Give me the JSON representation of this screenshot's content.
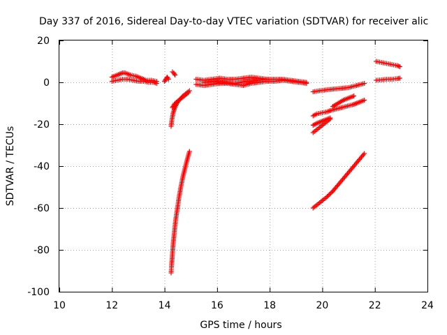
{
  "chart_data": {
    "type": "scatter",
    "title": "Day 337 of 2016, Sidereal Day-to-day VTEC variation (SDTVAR) for receiver alic",
    "xlabel": "GPS time / hours",
    "ylabel": "SDTVAR / TECUs",
    "xlim": [
      10,
      24
    ],
    "ylim": [
      -100,
      20
    ],
    "xticks": [
      "10",
      "12",
      "14",
      "16",
      "18",
      "20",
      "22",
      "24"
    ],
    "yticks": [
      "-100",
      "-80",
      "-60",
      "-40",
      "-20",
      "0",
      "20"
    ],
    "grid": true,
    "marker": "plus",
    "color": "#ff0000",
    "segments": [
      {
        "x": [
          12.0,
          12.2,
          12.4,
          12.5,
          12.7,
          12.9,
          13.1,
          13.3,
          13.5,
          13.7
        ],
        "y": [
          2.5,
          3.5,
          4.5,
          4.5,
          3.5,
          3.0,
          2.0,
          1.0,
          1.0,
          0.5
        ]
      },
      {
        "x": [
          12.0,
          12.2,
          12.4,
          12.6,
          12.8,
          13.0,
          13.2,
          13.4,
          13.6,
          13.7
        ],
        "y": [
          0.5,
          1.0,
          1.5,
          1.5,
          1.0,
          0.5,
          0.5,
          0.0,
          0.0,
          -0.5
        ]
      },
      {
        "x": [
          14.0,
          14.05,
          14.1,
          14.15
        ],
        "y": [
          0.5,
          1.5,
          2.5,
          1.5
        ]
      },
      {
        "x": [
          14.3,
          14.35,
          14.4
        ],
        "y": [
          5.0,
          4.5,
          3.5
        ]
      },
      {
        "x": [
          14.25,
          14.28,
          14.32,
          14.38,
          14.45,
          14.55,
          14.7,
          14.85,
          14.95
        ],
        "y": [
          -21.0,
          -18.0,
          -15.0,
          -12.5,
          -10.5,
          -8.5,
          -6.5,
          -5.0,
          -4.0
        ]
      },
      {
        "x": [
          14.3,
          14.35,
          14.4,
          14.5,
          14.6,
          14.7,
          14.8,
          14.9
        ],
        "y": [
          -12.0,
          -11.0,
          -10.0,
          -9.0,
          -8.0,
          -7.0,
          -6.0,
          -5.0
        ]
      },
      {
        "x": [
          14.25,
          14.27,
          14.3,
          14.33,
          14.37,
          14.42,
          14.48,
          14.55,
          14.62,
          14.7,
          14.78,
          14.86,
          14.95
        ],
        "y": [
          -91.0,
          -87.0,
          -82.0,
          -77.0,
          -72.0,
          -66.0,
          -61.0,
          -55.0,
          -50.0,
          -45.0,
          -41.0,
          -37.0,
          -33.0
        ]
      },
      {
        "x": [
          15.2,
          15.5,
          15.8,
          16.1,
          16.4,
          16.7,
          17.0,
          17.3,
          17.6,
          17.9,
          18.2,
          18.5,
          18.8,
          19.1,
          19.4
        ],
        "y": [
          1.5,
          1.0,
          1.5,
          2.0,
          1.5,
          1.5,
          2.0,
          2.5,
          2.0,
          1.5,
          1.5,
          1.5,
          1.0,
          0.5,
          0.0
        ]
      },
      {
        "x": [
          15.2,
          15.5,
          15.8,
          16.1,
          16.4,
          16.7,
          17.0,
          17.3,
          17.6,
          17.9,
          18.2,
          18.5,
          18.8,
          19.1,
          19.4
        ],
        "y": [
          -1.0,
          -1.5,
          -1.0,
          -0.5,
          -0.5,
          -1.0,
          -1.5,
          -0.5,
          0.0,
          0.5,
          0.5,
          1.0,
          0.5,
          0.0,
          -0.5
        ]
      },
      {
        "x": [
          15.5,
          15.9,
          16.3,
          16.7,
          17.1,
          17.5,
          17.9
        ],
        "y": [
          0.0,
          0.5,
          0.0,
          -0.5,
          0.5,
          1.0,
          1.5
        ]
      },
      {
        "x": [
          19.65,
          19.9,
          20.2,
          20.6,
          21.0,
          21.3,
          21.6
        ],
        "y": [
          -4.5,
          -4.0,
          -3.5,
          -3.0,
          -2.5,
          -1.5,
          -0.5
        ]
      },
      {
        "x": [
          19.65,
          19.8,
          20.0,
          20.2,
          20.3
        ],
        "y": [
          -16.0,
          -15.0,
          -14.5,
          -14.0,
          -13.5
        ]
      },
      {
        "x": [
          20.4,
          20.6,
          20.8,
          21.0,
          21.2
        ],
        "y": [
          -11.5,
          -10.0,
          -8.5,
          -7.5,
          -6.5
        ]
      },
      {
        "x": [
          20.3,
          20.6,
          20.9,
          21.2,
          21.5,
          21.6
        ],
        "y": [
          -13.5,
          -12.5,
          -11.5,
          -10.5,
          -9.0,
          -8.5
        ]
      },
      {
        "x": [
          19.65,
          19.8,
          20.0,
          20.2,
          20.3
        ],
        "y": [
          -20.5,
          -19.5,
          -18.5,
          -17.5,
          -17.0
        ]
      },
      {
        "x": [
          19.65,
          19.8,
          20.0,
          20.2,
          20.3
        ],
        "y": [
          -24.0,
          -22.5,
          -20.5,
          -18.5,
          -17.5
        ]
      },
      {
        "x": [
          19.65,
          19.9,
          20.15,
          20.4
        ],
        "y": [
          -60.0,
          -57.5,
          -55.0,
          -52.0
        ]
      },
      {
        "x": [
          20.4,
          20.7,
          21.0,
          21.3,
          21.6
        ],
        "y": [
          -52.0,
          -47.5,
          -43.0,
          -38.5,
          -34.0
        ]
      },
      {
        "x": [
          22.05,
          22.25,
          22.45,
          22.65,
          22.85,
          22.95
        ],
        "y": [
          10.0,
          9.5,
          9.0,
          8.5,
          8.0,
          7.5
        ]
      },
      {
        "x": [
          22.05,
          22.25,
          22.45,
          22.65,
          22.85,
          22.95
        ],
        "y": [
          1.0,
          1.2,
          1.5,
          1.5,
          1.8,
          2.0
        ]
      }
    ]
  }
}
